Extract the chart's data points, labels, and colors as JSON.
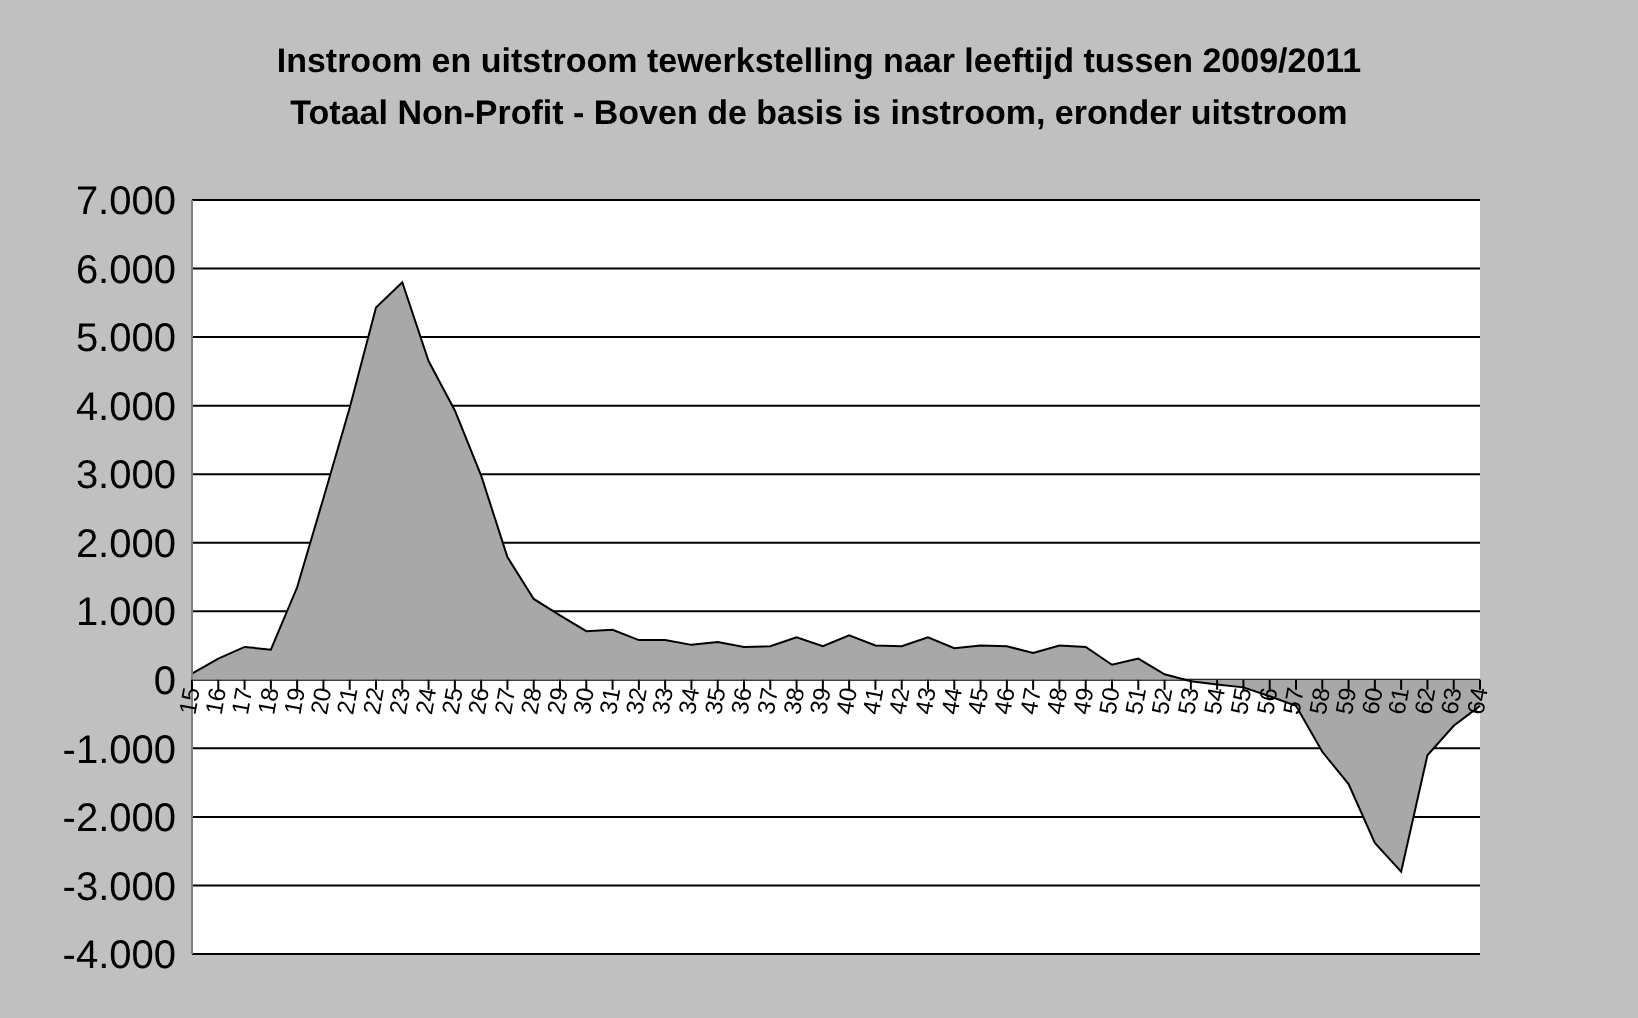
{
  "chart_data": {
    "type": "area",
    "title": "Instroom en uitstroom tewerkstelling naar leeftijd tussen 2009/2011",
    "subtitle": "Totaal Non-Profit - Boven de basis is instroom, eronder uitstroom",
    "categories": [
      "15",
      "16",
      "17",
      "18",
      "19",
      "20",
      "21",
      "22",
      "23",
      "24",
      "25",
      "26",
      "27",
      "28",
      "29",
      "30",
      "31",
      "32",
      "33",
      "34",
      "35",
      "36",
      "37",
      "38",
      "39",
      "40",
      "41",
      "42",
      "43",
      "44",
      "45",
      "46",
      "47",
      "48",
      "49",
      "50",
      "51",
      "52",
      "53",
      "54",
      "55",
      "56",
      "57",
      "58",
      "59",
      "60",
      "61",
      "62",
      "63",
      "64"
    ],
    "values": [
      90,
      310,
      480,
      440,
      1350,
      2650,
      3970,
      5430,
      5800,
      4650,
      3930,
      2980,
      1790,
      1180,
      940,
      710,
      730,
      580,
      580,
      510,
      550,
      480,
      490,
      620,
      490,
      650,
      500,
      490,
      620,
      460,
      500,
      490,
      390,
      500,
      480,
      220,
      310,
      80,
      -20,
      -70,
      -110,
      -240,
      -380,
      -1050,
      -1520,
      -2380,
      -2800,
      -1100,
      -670,
      -380
    ],
    "color": "#a8a8a8",
    "ylim": [
      -4000,
      7000
    ],
    "yticks": [
      {
        "value": -4000,
        "label": "-4.000"
      },
      {
        "value": -3000,
        "label": "-3.000"
      },
      {
        "value": -2000,
        "label": "-2.000"
      },
      {
        "value": -1000,
        "label": "-1.000"
      },
      {
        "value": 0,
        "label": "0"
      },
      {
        "value": 1000,
        "label": "1.000"
      },
      {
        "value": 2000,
        "label": "2.000"
      },
      {
        "value": 3000,
        "label": "3.000"
      },
      {
        "value": 4000,
        "label": "4.000"
      },
      {
        "value": 5000,
        "label": "5.000"
      },
      {
        "value": 6000,
        "label": "6.000"
      },
      {
        "value": 7000,
        "label": "7.000"
      }
    ],
    "grid": "y"
  }
}
